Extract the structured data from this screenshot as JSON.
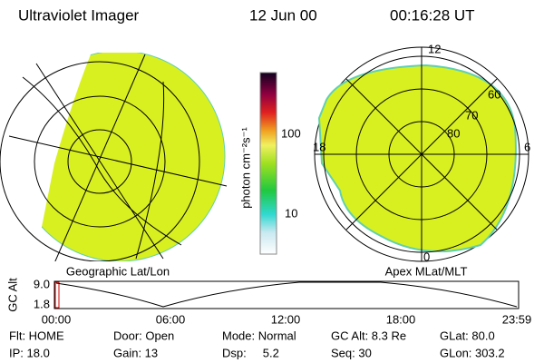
{
  "header": {
    "title": "Ultraviolet Imager",
    "date": "12 Jun 00",
    "time": "00:16:28 UT"
  },
  "colorbar": {
    "label": "photon cm⁻²s⁻¹",
    "ticks": [
      "100",
      "10"
    ]
  },
  "left_map": {
    "caption": "Geographic Lat/Lon"
  },
  "right_map": {
    "caption": "Apex MLat/MLT",
    "mlt_labels": [
      "12",
      "18",
      "6",
      "0"
    ],
    "lat_labels": [
      "60",
      "70",
      "80"
    ]
  },
  "altitude_plot": {
    "ylabel": "GC Alt",
    "yticks": [
      "9.0",
      "1.8"
    ],
    "xticks": [
      "00:00",
      "06:00",
      "12:00",
      "18:00",
      "23:59"
    ]
  },
  "status": {
    "rows": [
      [
        "Flt: HOME",
        "Door: Open",
        "Mode: Normal",
        "GC Alt: 8.3 Re",
        "GLat: 80.0"
      ],
      [
        "IP: 18.0",
        "Gain: 13",
        "Dsp:     5.2",
        "Seq: 30",
        "GLon: 303.2"
      ]
    ]
  }
}
